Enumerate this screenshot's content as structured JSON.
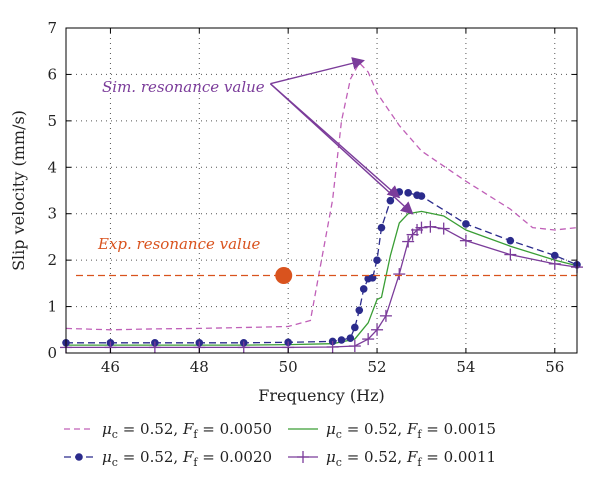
{
  "chart_data": {
    "type": "line",
    "xlabel": "Frequency (Hz)",
    "ylabel": "Slip velocity (mm/s)",
    "xlim": [
      45,
      56.5
    ],
    "ylim": [
      0,
      7
    ],
    "xticks": [
      46,
      48,
      50,
      52,
      54,
      56
    ],
    "yticks": [
      0,
      1,
      2,
      3,
      4,
      5,
      6,
      7
    ],
    "grid": true,
    "legend_position": "below",
    "series": [
      {
        "legend": {
          "mu": "μ",
          "mu_sub": "c",
          "val1": " = 0.52, ",
          "f": "F",
          "f_sub": "f",
          "val2": " = 0.0050"
        },
        "color": "#c060b8",
        "style": "dashed",
        "marker": "none",
        "x": [
          45,
          46,
          47,
          48,
          49,
          50,
          50.5,
          51,
          51.2,
          51.4,
          51.6,
          51.8,
          52,
          52.5,
          53,
          54,
          55,
          55.5,
          56,
          56.5
        ],
        "y": [
          0.53,
          0.5,
          0.52,
          0.53,
          0.55,
          0.57,
          0.7,
          3.3,
          5.0,
          5.9,
          6.25,
          6.05,
          5.6,
          4.9,
          4.35,
          3.7,
          3.1,
          2.7,
          2.65,
          2.7
        ]
      },
      {
        "legend": {
          "mu": "μ",
          "mu_sub": "c",
          "val1": " = 0.52, ",
          "f": "F",
          "f_sub": "f",
          "val2": " = 0.0020"
        },
        "color": "#2b2b8c",
        "style": "dashed",
        "marker": "circle",
        "x": [
          45,
          46,
          47,
          48,
          49,
          50,
          51,
          51.2,
          51.4,
          51.5,
          51.6,
          51.7,
          51.8,
          51.9,
          52,
          52.1,
          52.3,
          52.5,
          52.7,
          52.9,
          53,
          54,
          55,
          56,
          56.5
        ],
        "y": [
          0.22,
          0.22,
          0.22,
          0.22,
          0.22,
          0.23,
          0.25,
          0.28,
          0.32,
          0.55,
          0.92,
          1.38,
          1.6,
          1.62,
          2.0,
          2.7,
          3.28,
          3.47,
          3.45,
          3.4,
          3.38,
          2.78,
          2.42,
          2.1,
          1.9
        ]
      },
      {
        "legend": {
          "mu": "μ",
          "mu_sub": "c",
          "val1": " = 0.52, ",
          "f": "F",
          "f_sub": "f",
          "val2": " = 0.0015"
        },
        "color": "#3a9e35",
        "style": "solid",
        "marker": "none",
        "x": [
          45,
          46,
          47,
          48,
          49,
          50,
          51,
          51.5,
          51.8,
          52,
          52.1,
          52.3,
          52.5,
          52.7,
          53,
          53.5,
          54,
          55,
          56,
          56.5
        ],
        "y": [
          0.17,
          0.17,
          0.17,
          0.17,
          0.17,
          0.18,
          0.2,
          0.3,
          0.65,
          1.15,
          1.2,
          2.1,
          2.8,
          3.0,
          3.05,
          2.95,
          2.65,
          2.3,
          2.0,
          1.88
        ]
      },
      {
        "legend": {
          "mu": "μ",
          "mu_sub": "c",
          "val1": " = 0.52, ",
          "f": "F",
          "f_sub": "f",
          "val2": " = 0.0011"
        },
        "color": "#7b3c9a",
        "style": "solid",
        "marker": "plus",
        "x": [
          45,
          46,
          47,
          48,
          49,
          50,
          51,
          51.5,
          51.8,
          52,
          52.2,
          52.5,
          52.7,
          52.8,
          52.9,
          53,
          53.2,
          53.5,
          54,
          55,
          56,
          56.5
        ],
        "y": [
          0.12,
          0.12,
          0.12,
          0.12,
          0.12,
          0.12,
          0.13,
          0.15,
          0.3,
          0.5,
          0.8,
          1.7,
          2.4,
          2.55,
          2.65,
          2.7,
          2.72,
          2.68,
          2.42,
          2.12,
          1.92,
          1.85
        ]
      }
    ],
    "reference_line": {
      "y": 1.67,
      "color": "#d9531e",
      "style": "dashed"
    },
    "experimental_point": {
      "x": 49.9,
      "y": 1.67,
      "color": "#d9531e"
    },
    "annotations": [
      {
        "text": "Sim. resonance value",
        "color": "#7b3c9a",
        "arrow_origin": {
          "x": 49.6,
          "y": 5.8
        },
        "arrow_targets": [
          {
            "x": 51.7,
            "y": 6.3
          },
          {
            "x": 52.5,
            "y": 3.35
          },
          {
            "x": 52.8,
            "y": 3.0
          }
        ]
      },
      {
        "text": "Exp. resonance value",
        "color": "#d9531e"
      }
    ]
  }
}
